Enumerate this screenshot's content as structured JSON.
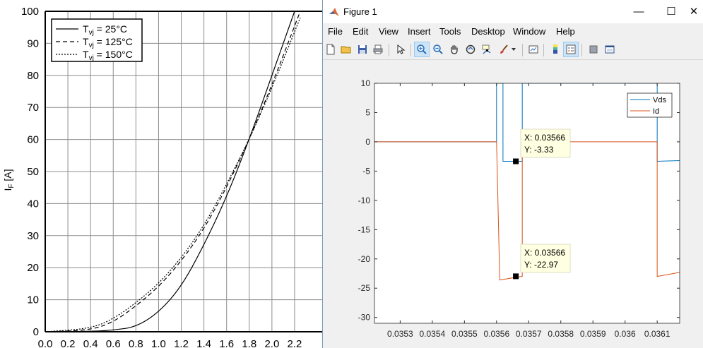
{
  "background_plot": {
    "ylabel": "IF [A]",
    "ylabel_main": "I",
    "ylabel_sub": "F",
    "ylabel_unit": " [A]",
    "legend": [
      {
        "main": "T",
        "sub": "vj",
        "rest": " = 25°C"
      },
      {
        "main": "T",
        "sub": "vj",
        "rest": " = 125°C"
      },
      {
        "main": "T",
        "sub": "vj",
        "rest": " = 150°C"
      }
    ],
    "yticks": [
      "0",
      "10",
      "20",
      "30",
      "40",
      "50",
      "60",
      "70",
      "80",
      "90",
      "100"
    ],
    "xticks": [
      "0.0",
      "0.2",
      "0.4",
      "0.6",
      "0.8",
      "1.0",
      "1.2",
      "1.4",
      "1.6",
      "1.8",
      "2.0",
      "2.2"
    ]
  },
  "chart_data": [
    {
      "type": "line",
      "title": "",
      "xlabel": "",
      "ylabel": "IF [A]",
      "xlim": [
        0,
        2.3
      ],
      "ylim": [
        0,
        100
      ],
      "grid": true,
      "legend_position": "top-left",
      "series": [
        {
          "name": "Tvj = 25°C",
          "style": "solid",
          "x": [
            0.0,
            0.4,
            0.6,
            0.8,
            1.0,
            1.2,
            1.4,
            1.6,
            1.8,
            2.0,
            2.2
          ],
          "y": [
            0,
            0.1,
            0.5,
            1.5,
            6,
            14,
            27,
            42,
            60,
            80,
            100
          ]
        },
        {
          "name": "Tvj = 125°C",
          "style": "dashed",
          "x": [
            0.0,
            0.4,
            0.6,
            0.8,
            1.0,
            1.2,
            1.4,
            1.6,
            1.8,
            2.0,
            2.25
          ],
          "y": [
            0,
            0.5,
            3,
            8,
            14,
            22,
            32,
            45,
            60,
            77,
            100
          ]
        },
        {
          "name": "Tvj = 150°C",
          "style": "dotted",
          "x": [
            0.0,
            0.4,
            0.6,
            0.8,
            1.0,
            1.2,
            1.4,
            1.6,
            1.8,
            2.0,
            2.25
          ],
          "y": [
            0,
            1,
            4,
            9,
            15,
            23,
            33,
            46,
            60,
            76,
            98
          ]
        }
      ]
    },
    {
      "type": "line",
      "title": "",
      "xlabel": "",
      "ylabel": "",
      "xlim": [
        0.03522,
        0.03617
      ],
      "ylim": [
        -31,
        10
      ],
      "grid": false,
      "legend_position": "top-right",
      "xticks": [
        "0.0353",
        "0.0354",
        "0.0355",
        "0.0356",
        "0.0357",
        "0.0358",
        "0.0359",
        "0.036",
        "0.0361"
      ],
      "yticks": [
        "10",
        "5",
        "0",
        "-5",
        "-10",
        "-15",
        "-20",
        "-25",
        "-30"
      ],
      "series": [
        {
          "name": "Vds",
          "color": "#0072bd",
          "x": [
            0.03522,
            0.0356,
            0.0356,
            0.03562,
            0.03562,
            0.03568,
            0.03568,
            0.0361,
            0.0361,
            0.03617
          ],
          "y": [
            0,
            0,
            10,
            10,
            -3.33,
            -3.33,
            10,
            10,
            -3.33,
            -3.2
          ]
        },
        {
          "name": "Id",
          "color": "#d95319",
          "x": [
            0.03522,
            0.0356,
            0.03561,
            0.03568,
            0.03568,
            0.0361,
            0.0361,
            0.03617
          ],
          "y": [
            0,
            0,
            -23.6,
            -22.97,
            0,
            0,
            -23,
            -22.3
          ]
        }
      ],
      "datatips": [
        {
          "x_label": "X: 0.03566",
          "y_label": "Y: -3.33",
          "x": 0.03566,
          "y": -3.33
        },
        {
          "x_label": "X: 0.03566",
          "y_label": "Y: -22.97",
          "x": 0.03566,
          "y": -22.97
        }
      ]
    }
  ],
  "window": {
    "title": "Figure 1",
    "minimize_glyph": "—",
    "maximize_glyph": "☐",
    "close_glyph": "✕"
  },
  "menu": [
    "File",
    "Edit",
    "View",
    "Insert",
    "Tools",
    "Desktop",
    "Window",
    "Help"
  ],
  "toolbar_icons": [
    "new-figure-icon",
    "open-file-icon",
    "save-icon",
    "print-icon",
    "edit-plot-arrow-icon",
    "zoom-in-icon",
    "zoom-out-icon",
    "pan-hand-icon",
    "rotate-3d-icon",
    "data-cursor-icon",
    "brush-icon",
    "brush-dropdown-icon",
    "link-plot-icon",
    "insert-colorbar-icon",
    "insert-legend-icon",
    "hide-plot-tools-icon",
    "show-plot-tools-icon"
  ],
  "colors": {
    "vds": "#0072bd",
    "id": "#d95319",
    "datatip_bg": "#ffffe1",
    "active_tool": "#cce4f7"
  }
}
